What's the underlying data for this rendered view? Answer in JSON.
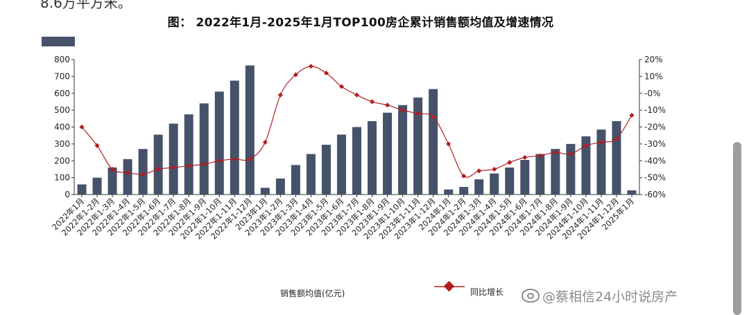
{
  "page": {
    "top_cut_text": "8.6万平方米。",
    "watermark": "@蔡相信24小时说房产"
  },
  "colors": {
    "bar": "#46526a",
    "line": "#b11e22",
    "marker": "#b11e22"
  },
  "chart_data": {
    "type": "bar",
    "title": "图：  2022年1月-2025年1月TOP100房企累计销售额均值及增速情况",
    "categories": [
      "2022年1月",
      "2022年1-2月",
      "2022年1-3月",
      "2022年1-4月",
      "2022年1-5月",
      "2022年1-6月",
      "2022年1-7月",
      "2022年1-8月",
      "2022年1-9月",
      "2022年1-10月",
      "2022年1-11月",
      "2022年1-12月",
      "2023年1月",
      "2023年1-2月",
      "2023年1-3月",
      "2023年1-4月",
      "2023年1-5月",
      "2023年1-6月",
      "2023年1-7月",
      "2023年1-8月",
      "2023年1-9月",
      "2023年1-10月",
      "2023年1-11月",
      "2023年1-12月",
      "2024年1月",
      "2024年1-2月",
      "2024年1-3月",
      "2024年1-4月",
      "2024年1-5月",
      "2024年1-6月",
      "2024年1-7月",
      "2024年1-8月",
      "2024年1-9月",
      "2024年1-10月",
      "2024年1-11月",
      "2024年1-12月",
      "2025年1月"
    ],
    "series": [
      {
        "name": "销售额均值(亿元)",
        "type": "bar",
        "axis": "left",
        "values": [
          60,
          100,
          160,
          210,
          270,
          355,
          420,
          475,
          540,
          610,
          675,
          765,
          40,
          95,
          175,
          240,
          295,
          355,
          400,
          435,
          485,
          530,
          575,
          625,
          30,
          45,
          90,
          125,
          160,
          205,
          240,
          270,
          300,
          345,
          385,
          435,
          25
        ]
      },
      {
        "name": "同比增长",
        "type": "line",
        "axis": "right",
        "values": [
          -20,
          -31,
          -45,
          -47,
          -48,
          -45,
          -44,
          -43,
          -42,
          -40,
          -39,
          -39,
          -29,
          -1,
          11,
          16,
          12,
          4,
          -1,
          -5,
          -7,
          -10,
          -12,
          -14,
          -30,
          -49,
          -46,
          -45,
          -41,
          -38,
          -37,
          -35,
          -36,
          -31,
          -29,
          -27,
          -13
        ]
      }
    ],
    "y_left": {
      "ticks": [
        "0",
        "100",
        "200",
        "300",
        "400",
        "500",
        "600",
        "700",
        "800"
      ],
      "ylim": [
        0,
        800
      ]
    },
    "y_right": {
      "ticks": [
        "20%",
        "10%",
        "-0%",
        "-10%",
        "-20%",
        "-30%",
        "-40%",
        "-50%",
        "-60%"
      ],
      "ylim": [
        -60,
        20
      ]
    },
    "legend": {
      "placement": "bottom",
      "bar_label": "销售额均值(亿元)",
      "line_label": "同比增长"
    },
    "grid": false
  }
}
